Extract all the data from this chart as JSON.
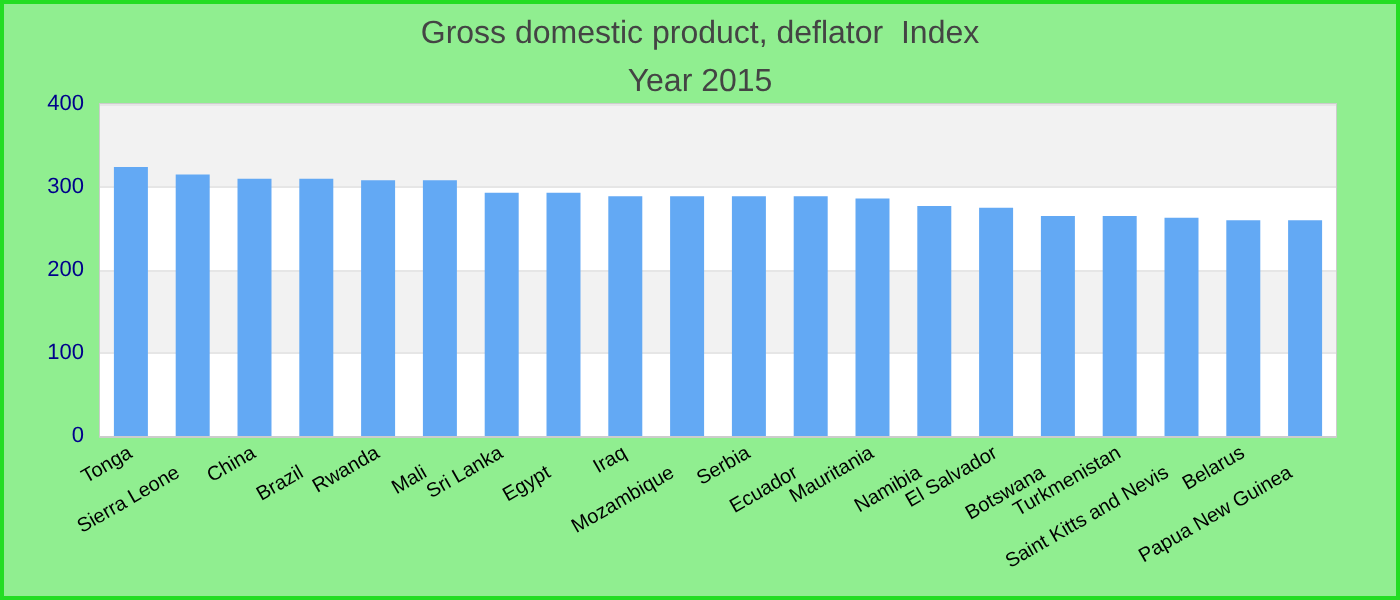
{
  "chart_data": {
    "type": "bar",
    "title": "Gross domestic product, deflator  Index",
    "subtitle": "Year 2015",
    "categories": [
      "Tonga",
      "Sierra Leone",
      "China",
      "Brazil",
      "Rwanda",
      "Mali",
      "Sri Lanka",
      "Egypt",
      "Iraq",
      "Mozambique",
      "Serbia",
      "Ecuador",
      "Mauritania",
      "Namibia",
      "El Salvador",
      "Botswana",
      "Turkmenistan",
      "Saint Kitts and Nevis",
      "Belarus",
      "Papua New Guinea"
    ],
    "values": [
      324,
      315,
      310,
      310,
      308,
      308,
      293,
      293,
      289,
      289,
      289,
      289,
      286,
      277,
      275,
      265,
      265,
      263,
      260,
      260
    ],
    "color": "#63a9f4",
    "ylim": [
      0,
      400
    ],
    "yticks": [
      0,
      100,
      200,
      300,
      400
    ],
    "grid": "y"
  }
}
